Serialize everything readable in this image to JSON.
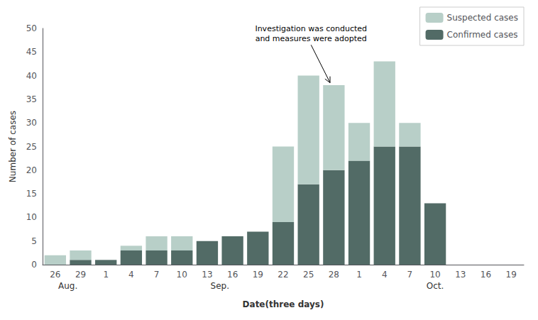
{
  "chart_data": {
    "type": "bar",
    "stacked": true,
    "categories": [
      "26",
      "29",
      "1",
      "4",
      "7",
      "10",
      "13",
      "16",
      "19",
      "22",
      "25",
      "28",
      "1",
      "4",
      "7",
      "10",
      "13",
      "16",
      "19"
    ],
    "series": [
      {
        "name": "Confirmed cases",
        "color": "#526b66",
        "values": [
          0,
          1,
          1,
          3,
          3,
          3,
          5,
          6,
          7,
          9,
          17,
          20,
          22,
          25,
          25,
          13,
          0,
          0,
          0
        ]
      },
      {
        "name": "Suspected cases",
        "color": "#b8cfc8",
        "values": [
          2,
          2,
          0,
          1,
          3,
          3,
          0,
          0,
          0,
          16,
          23,
          18,
          8,
          18,
          5,
          0,
          0,
          0,
          0
        ]
      }
    ],
    "ylim": [
      0,
      50
    ],
    "yticks": [
      0,
      5,
      10,
      15,
      20,
      25,
      30,
      35,
      40,
      45,
      50
    ],
    "ylabel": "Number of cases",
    "xlabel": "Date(three days)",
    "annotation": "Investigation was conducted\nand measures were adopted",
    "month_labels": [
      "Aug.",
      "Sep.",
      "Oct."
    ],
    "legend": "upper right",
    "grid": false
  }
}
